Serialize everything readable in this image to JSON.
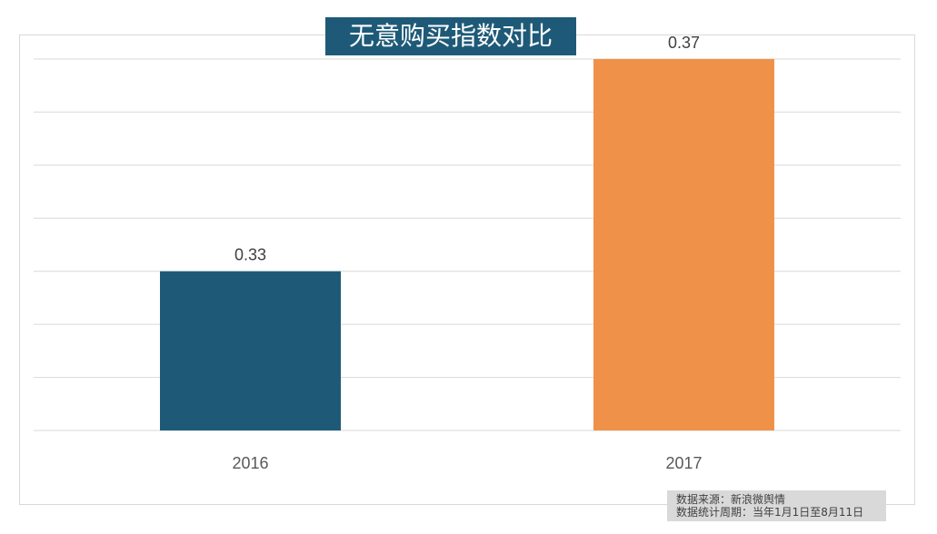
{
  "chart_data": {
    "type": "bar",
    "title": "无意购买指数对比",
    "categories": [
      "2016",
      "2017"
    ],
    "values": [
      0.33,
      0.37
    ],
    "data_labels": [
      "0.33",
      "0.37"
    ],
    "bar_colors": [
      "#1e5a78",
      "#f0914a"
    ],
    "title_background": "#1e5a78",
    "gridline_color": "#d9d9d9",
    "ylim": [
      0.3,
      0.37
    ],
    "gridline_step": 0.01,
    "grid": true,
    "legend": "none",
    "xlabel": "",
    "ylabel": ""
  },
  "source": {
    "line1": "数据来源：新浪微舆情",
    "line2": "数据统计周期：当年1月1日至8月11日"
  }
}
